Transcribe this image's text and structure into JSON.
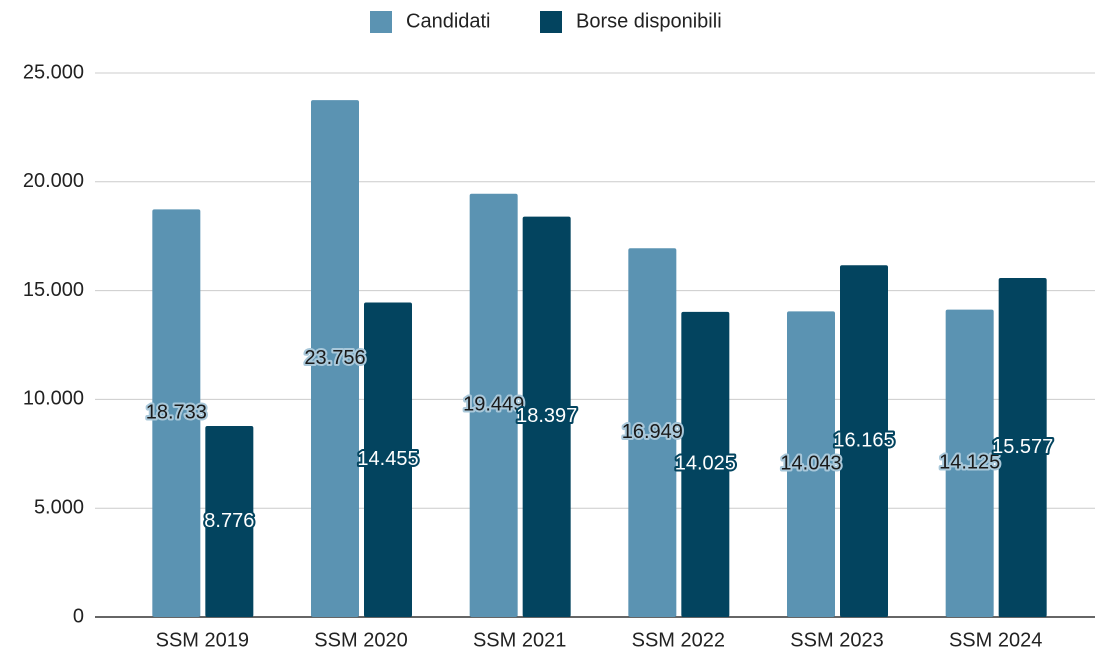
{
  "chart_data": {
    "type": "bar",
    "categories": [
      "SSM 2019",
      "SSM 2020",
      "SSM 2021",
      "SSM 2022",
      "SSM 2023",
      "SSM 2024"
    ],
    "series": [
      {
        "name": "Candidati",
        "color": "#5b93b2",
        "values": [
          18733,
          23756,
          19449,
          16949,
          14043,
          14125
        ],
        "value_labels": [
          "18.733",
          "23.756",
          "19.449",
          "16.949",
          "14.043",
          "14.125"
        ]
      },
      {
        "name": "Borse disponibili",
        "color": "#03445f",
        "values": [
          8776,
          14455,
          18397,
          14025,
          16165,
          15577
        ],
        "value_labels": [
          "8.776",
          "14.455",
          "18.397",
          "14.025",
          "16.165",
          "15.577"
        ]
      }
    ],
    "ylim": [
      0,
      25000
    ],
    "yticks": [
      0,
      {
        "value": 5000,
        "label": "5.000"
      },
      {
        "value": 10000,
        "label": "10.000"
      },
      {
        "value": 15000,
        "label": "15.000"
      },
      {
        "value": 20000,
        "label": "20.000"
      },
      {
        "value": 25000,
        "label": "25.000"
      }
    ],
    "grid": true,
    "legend": "top"
  }
}
